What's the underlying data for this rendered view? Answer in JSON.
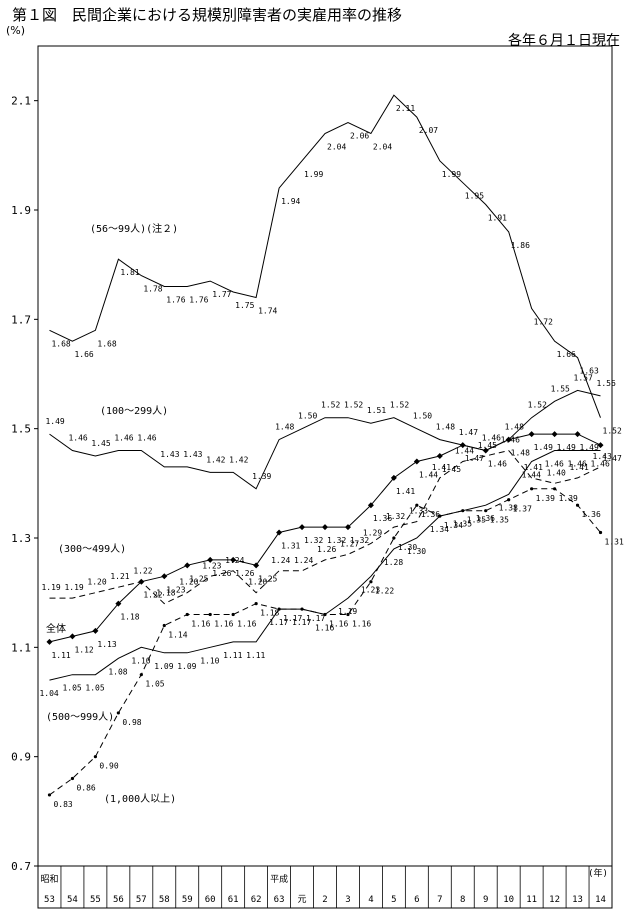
{
  "title": "第１図　民間企業における規模別障害者の実雇用率の推移",
  "subtitle": "各年６月１日現在",
  "chart_data": {
    "type": "line",
    "y_unit": "(%)",
    "x_unit": "(年)",
    "ylim": [
      0.7,
      2.2
    ],
    "yticks": [
      "0.7",
      "0.9",
      "1.1",
      "1.3",
      "1.5",
      "1.7",
      "1.9",
      "2.1"
    ],
    "era_labels": [
      {
        "label": "昭和",
        "index": 0
      },
      {
        "label": "平成",
        "index": 10
      }
    ],
    "categories": [
      "53",
      "54",
      "55",
      "56",
      "57",
      "58",
      "59",
      "60",
      "61",
      "62",
      "63",
      "元",
      "2",
      "3",
      "4",
      "5",
      "6",
      "7",
      "8",
      "9",
      "10",
      "11",
      "12",
      "13",
      "14"
    ],
    "series": [
      {
        "name": "(56～99人)(注２)",
        "style": "solid-plain",
        "values": [
          1.68,
          1.66,
          1.68,
          1.81,
          1.78,
          1.76,
          1.76,
          1.77,
          1.75,
          1.74,
          1.94,
          1.99,
          2.04,
          2.06,
          2.04,
          2.11,
          2.07,
          1.99,
          1.95,
          1.91,
          1.86,
          1.72,
          1.66,
          1.63,
          1.52
        ],
        "labels": [
          "1.68",
          "1.66",
          "1.68",
          "1.81",
          "1.78",
          "1.76",
          "1.76",
          "1.77",
          "1.75",
          "1.74",
          "1.94",
          "1.99",
          "2.04",
          "2.06",
          "2.04",
          "2.11",
          "2.07",
          "1.99",
          "1.95",
          "1.91",
          "1.86",
          "1.72",
          "1.66",
          "1.63",
          "1.52"
        ]
      },
      {
        "name": "(100～299人)",
        "style": "solid-plain",
        "values": [
          1.49,
          1.46,
          1.45,
          1.46,
          1.46,
          1.43,
          1.43,
          1.42,
          1.42,
          1.39,
          1.48,
          1.5,
          1.52,
          1.52,
          1.51,
          1.52,
          1.5,
          1.48,
          1.47,
          1.46,
          1.48,
          1.52,
          1.55,
          1.57,
          1.56
        ],
        "labels": [
          "1.49",
          "1.46",
          "1.45",
          "1.46",
          "1.46",
          "1.43",
          "1.43",
          "1.42",
          "1.42",
          "1.39",
          "1.48",
          "1.50",
          "1.52",
          "1.52",
          "1.51",
          "1.52",
          "1.50",
          "1.48",
          "1.47",
          "1.46",
          "1.48",
          "1.52",
          "1.55",
          "1.57",
          "1.56"
        ]
      },
      {
        "name": "(300～499人)",
        "style": "dashed-plain",
        "values": [
          1.19,
          1.19,
          1.2,
          1.21,
          1.22,
          1.18,
          1.2,
          1.23,
          1.24,
          1.2,
          1.24,
          1.24,
          1.26,
          1.27,
          1.29,
          1.32,
          1.33,
          1.41,
          1.44,
          1.45,
          1.46,
          1.41,
          1.4,
          1.41,
          1.43
        ],
        "labels": [
          "1.19",
          "1.19",
          "1.20",
          "1.21",
          "1.22",
          "1.18",
          "1.20",
          "1.23",
          "1.24",
          "1.20",
          "1.24",
          "1.24",
          "1.26",
          "1.27",
          "1.29",
          "1.32",
          "1.33",
          "1.41",
          "1.44",
          "1.45",
          "1.46",
          "1.41",
          "1.40",
          "1.41",
          "1.43"
        ]
      },
      {
        "name": "全体",
        "style": "solid-diamond",
        "values": [
          1.11,
          1.12,
          1.13,
          1.18,
          1.22,
          1.23,
          1.25,
          1.26,
          1.26,
          1.25,
          1.31,
          1.32,
          1.32,
          1.32,
          1.36,
          1.41,
          1.44,
          1.45,
          1.47,
          1.46,
          1.48,
          1.49,
          1.49,
          1.49,
          1.47
        ],
        "labels": [
          "1.11",
          "1.12",
          "1.13",
          "1.18",
          "1.22",
          "1.23",
          "1.25",
          "1.26",
          "1.26",
          "1.25",
          "1.31",
          "1.32",
          "1.32",
          "1.32",
          "1.36",
          "1.41",
          "1.44",
          "1.45",
          "1.47",
          "1.46",
          "1.48",
          "1.49",
          "1.49",
          "1.49",
          "1.47"
        ]
      },
      {
        "name": "(500～999人)",
        "style": "solid-plain",
        "values": [
          1.04,
          1.05,
          1.05,
          1.08,
          1.1,
          1.09,
          1.09,
          1.1,
          1.11,
          1.11,
          1.17,
          1.17,
          1.16,
          1.19,
          1.23,
          1.28,
          1.3,
          1.34,
          1.35,
          1.36,
          1.38,
          1.44,
          1.46,
          1.46,
          1.46
        ],
        "labels": [
          "1.04",
          "1.05",
          "1.05",
          "1.08",
          "1.10",
          "1.09",
          "1.09",
          "1.10",
          "1.11",
          "1.11",
          "1.17",
          "1.17",
          "1.16",
          "1.19",
          "1.23",
          "1.28",
          "1.30",
          "1.34",
          "1.35",
          "1.36",
          "1.38",
          "1.44",
          "1.46",
          "1.46",
          "1.46"
        ]
      },
      {
        "name": "(1,000人以上)",
        "style": "dashed-dot",
        "values": [
          0.83,
          0.86,
          0.9,
          0.98,
          1.05,
          1.14,
          1.16,
          1.16,
          1.16,
          1.18,
          1.17,
          1.17,
          1.16,
          1.16,
          1.22,
          1.3,
          1.36,
          1.34,
          1.35,
          1.35,
          1.37,
          1.39,
          1.39,
          1.36,
          1.31
        ],
        "labels": [
          "0.83",
          "0.86",
          "0.90",
          "0.98",
          "1.05",
          "1.14",
          "1.16",
          "1.16",
          "1.16",
          "1.18",
          "1.17",
          "1.17",
          "1.16",
          "1.16",
          "1.22",
          "1.30",
          "1.36",
          "1.34",
          "1.35",
          "1.35",
          "1.37",
          "1.39",
          "1.39",
          "1.36",
          "1.31"
        ]
      }
    ]
  }
}
